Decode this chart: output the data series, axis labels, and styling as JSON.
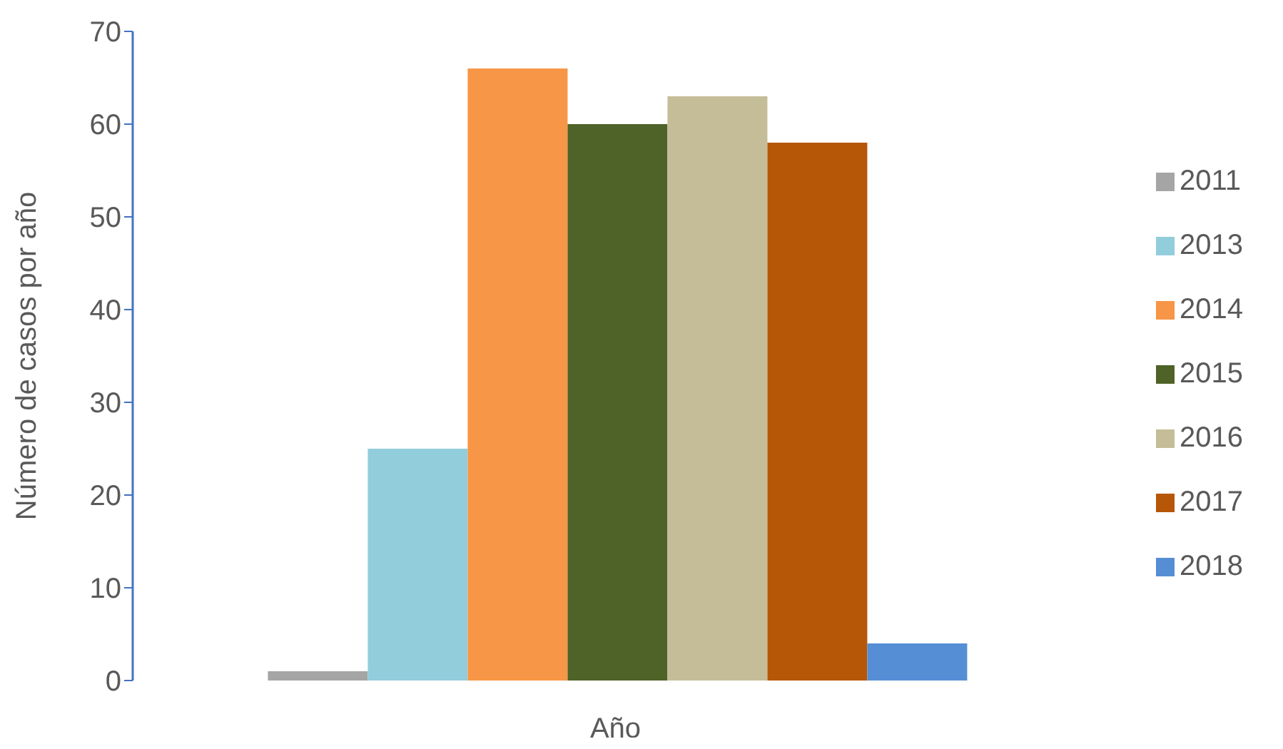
{
  "chart_data": {
    "type": "bar",
    "xlabel": "Año",
    "ylabel": "Número de casos por año",
    "categories": [
      null
    ],
    "series": [
      {
        "name": "2011",
        "color": "#a5a5a5",
        "values": [
          1
        ]
      },
      {
        "name": "2013",
        "color": "#92cddc",
        "values": [
          25
        ]
      },
      {
        "name": "2014",
        "color": "#f79646",
        "values": [
          66
        ]
      },
      {
        "name": "2015",
        "color": "#4f6228",
        "values": [
          60
        ]
      },
      {
        "name": "2016",
        "color": "#c4bd97",
        "values": [
          63
        ]
      },
      {
        "name": "2017",
        "color": "#b65708",
        "values": [
          58
        ]
      },
      {
        "name": "2018",
        "color": "#558ed5",
        "values": [
          4
        ]
      }
    ],
    "ylim": [
      0,
      70
    ],
    "yticks": [
      0,
      10,
      20,
      30,
      40,
      50,
      60,
      70
    ],
    "grid": false,
    "legend": "right"
  }
}
